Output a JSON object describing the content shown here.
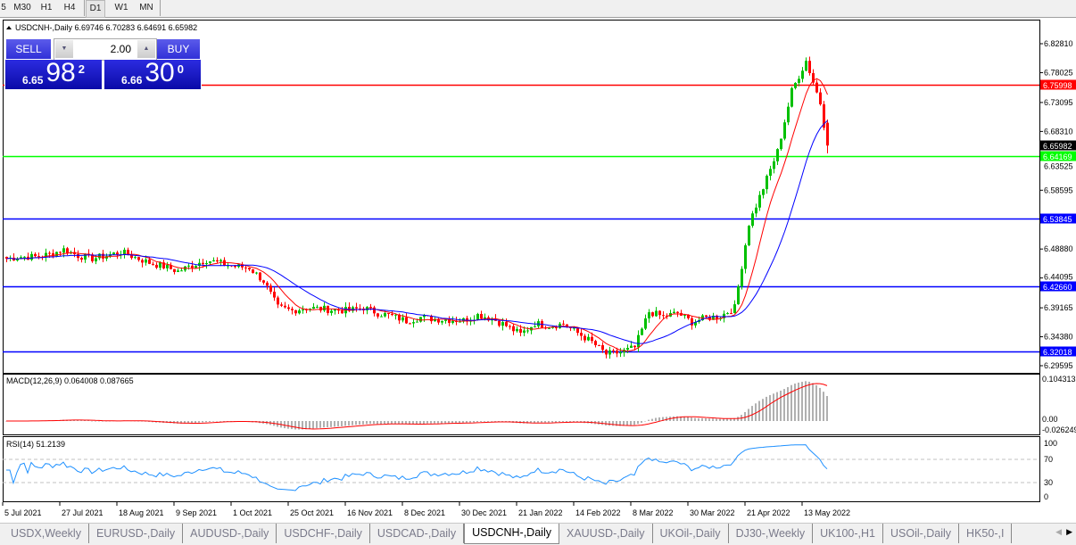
{
  "toolbar": {
    "timeframes": [
      "5",
      "M30",
      "H1",
      "H4",
      "D1",
      "W1",
      "MN"
    ],
    "active": "D1"
  },
  "chart": {
    "header": "USDCNH-,Daily  6.69746 6.70283 6.64691 6.65982",
    "symbol": "USDCNH-,Daily",
    "ohlc": {
      "open": "6.69746",
      "high": "6.70283",
      "low": "6.64691",
      "close": "6.65982"
    },
    "trade_panel": {
      "sell_label": "SELL",
      "buy_label": "BUY",
      "lot": "2.00",
      "sell_price": {
        "prefix": "6.65",
        "big": "98",
        "sup": "2"
      },
      "buy_price": {
        "prefix": "6.66",
        "big": "30",
        "sup": "0"
      }
    },
    "price_axis": [
      "6.82810",
      "6.78025",
      "6.73095",
      "6.68310",
      "6.63525",
      "6.58595",
      "6.48880",
      "6.44095",
      "6.39165",
      "6.34380",
      "6.29595"
    ],
    "current_price": "6.65982",
    "hlines": [
      {
        "price": "6.75998",
        "color": "#ff0000"
      },
      {
        "price": "6.64169",
        "color": "#00ff00"
      },
      {
        "price": "6.53845",
        "color": "#0000ff"
      },
      {
        "price": "6.42660",
        "color": "#0000ff"
      },
      {
        "price": "6.32018",
        "color": "#0000ff"
      }
    ],
    "colors": {
      "bull": "#00c000",
      "bear": "#ff0000",
      "ma_fast": "#ff0000",
      "ma_slow": "#0000ff"
    },
    "date_axis": [
      "5 Jul 2021",
      "27 Jul 2021",
      "18 Aug 2021",
      "9 Sep 2021",
      "1 Oct 2021",
      "25 Oct 2021",
      "16 Nov 2021",
      "8 Dec 2021",
      "30 Dec 2021",
      "21 Jan 2022",
      "14 Feb 2022",
      "8 Mar 2022",
      "30 Mar 2022",
      "21 Apr 2022",
      "13 May 2022"
    ],
    "close_approx_every_4_bars": [
      6.473,
      6.476,
      6.476,
      6.48,
      6.488,
      6.478,
      6.473,
      6.478,
      6.484,
      6.475,
      6.466,
      6.46,
      6.452,
      6.462,
      6.471,
      6.465,
      6.46,
      6.458,
      6.436,
      6.392,
      6.387,
      6.392,
      6.39,
      6.388,
      6.387,
      6.392,
      6.383,
      6.378,
      6.37,
      6.376,
      6.373,
      6.372,
      6.371,
      6.38,
      6.374,
      6.362,
      6.348,
      6.366,
      6.362,
      6.365,
      6.35,
      6.335,
      6.315,
      6.318,
      6.326,
      6.385,
      6.377,
      6.383,
      6.368,
      6.375,
      6.378,
      6.392,
      6.531,
      6.59,
      6.65,
      6.75,
      6.8,
      6.73,
      6.65982
    ]
  },
  "macd": {
    "label": "MACD(12,26,9) 0.064008 0.087665",
    "axis": [
      "0.104313",
      "0.00",
      "-0.026249"
    ]
  },
  "rsi": {
    "label": "RSI(14) 51.2139",
    "axis": [
      "100",
      "70",
      "30",
      "0"
    ]
  },
  "tabs": [
    "USDX,Weekly",
    "EURUSD-,Daily",
    "AUDUSD-,Daily",
    "USDCHF-,Daily",
    "USDCAD-,Daily",
    "USDCNH-,Daily",
    "XAUUSD-,Daily",
    "UKOil-,Daily",
    "DJ30-,Weekly",
    "UK100-,H1",
    "USOil-,Daily",
    "HK50-,I"
  ],
  "active_tab": "USDCNH-,Daily"
}
